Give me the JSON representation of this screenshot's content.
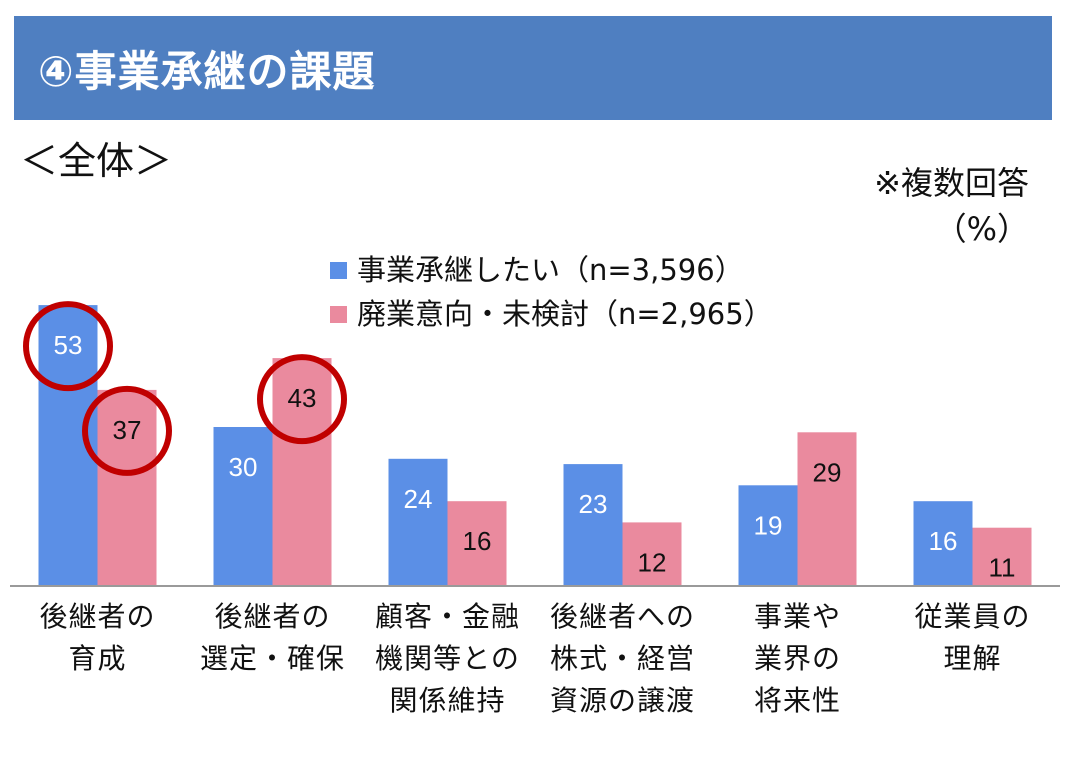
{
  "header": {
    "title": "④事業承継の課題"
  },
  "scope_label": "＜全体＞",
  "note": {
    "line1": "※複数回答",
    "line2": "（%）"
  },
  "colors": {
    "banner": "#4f7fc1",
    "series1": "#5b8fe6",
    "series2": "#ea8a9e",
    "highlight": "#c00000"
  },
  "chart_data": {
    "type": "bar",
    "categories": [
      "後継者の\n育成",
      "後継者の\n選定・確保",
      "顧客・金融\n機関等との\n関係維持",
      "後継者への\n株式・経営\n資源の譲渡",
      "事業や\n業界の\n将来性",
      "従業員の\n理解"
    ],
    "series": [
      {
        "name": "事業承継したい（n=3,596）",
        "values": [
          53,
          30,
          24,
          23,
          19,
          16
        ]
      },
      {
        "name": "廃業意向・未検討（n=2,965）",
        "values": [
          37,
          43,
          16,
          12,
          29,
          11
        ]
      }
    ],
    "ylim": [
      0,
      60
    ],
    "highlighted": [
      {
        "series": 0,
        "category": 0
      },
      {
        "series": 1,
        "category": 0
      },
      {
        "series": 1,
        "category": 1
      }
    ]
  }
}
